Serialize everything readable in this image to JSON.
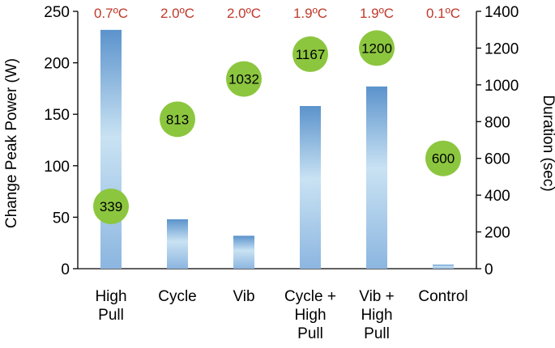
{
  "chart_data": {
    "type": "bar",
    "categories": [
      [
        "High",
        "Pull"
      ],
      [
        "Cycle"
      ],
      [
        "Vib"
      ],
      [
        "Cycle +",
        "High",
        "Pull"
      ],
      [
        "Vib +",
        "High",
        "Pull"
      ],
      [
        "Control"
      ]
    ],
    "series": [
      {
        "values": [
          232,
          48,
          32,
          158,
          177,
          4
        ]
      },
      {
        "values": [
          339,
          813,
          1032,
          1167,
          1200,
          600
        ]
      }
    ],
    "temperature_labels": [
      "0.7ºC",
      "2.0ºC",
      "2.0ºC",
      "1.9ºC",
      "1.9ºC",
      "0.1ºC"
    ],
    "ylabel": "Change Peak Power (W)",
    "y2label": "Duration (sec)",
    "ylim": [
      0,
      250
    ],
    "y_ticks": [
      0,
      50,
      100,
      150,
      200,
      250
    ],
    "y2lim": [
      0,
      1400
    ],
    "y2_ticks": [
      0,
      200,
      400,
      600,
      800,
      1000,
      1200,
      1400
    ],
    "colors": {
      "bar_top": "#5b93cc",
      "bar_mid": "#c9e2f3",
      "bar_bottom": "#8cb6e0",
      "circle": "#8cc63f",
      "temp_label": "#c0392b",
      "axis": "#000000"
    },
    "grid": false
  }
}
